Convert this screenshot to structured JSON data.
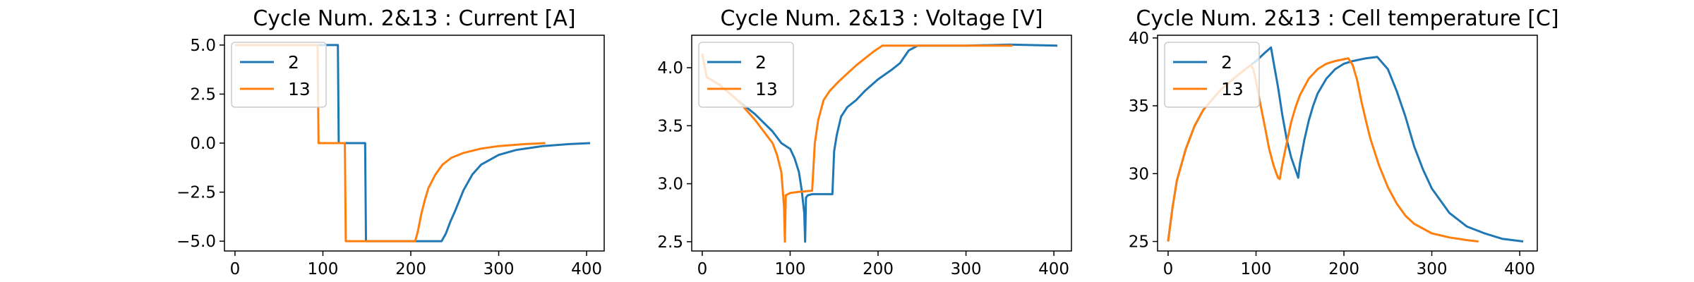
{
  "colors": {
    "series_2": "#1f77b4",
    "series_13": "#ff7f0e"
  },
  "chart_data": [
    {
      "type": "line",
      "title": "Cycle Num. 2&13 : Current [A]",
      "xlim": [
        -12,
        420
      ],
      "ylim": [
        -5.5,
        5.5
      ],
      "xticks": [
        0,
        100,
        200,
        300,
        400
      ],
      "xtick_labels": [
        "0",
        "100",
        "200",
        "300",
        "400"
      ],
      "yticks": [
        5.0,
        2.5,
        0.0,
        -2.5,
        -5.0
      ],
      "ytick_labels": [
        "5.0",
        "2.5",
        "0.0",
        "−2.5",
        "−5.0"
      ],
      "legend": "upper-left",
      "series": [
        {
          "name": "2",
          "x": [
            0,
            117,
            118,
            148,
            149,
            235,
            240,
            245,
            250,
            260,
            270,
            280,
            300,
            320,
            350,
            380,
            404
          ],
          "y": [
            5,
            5,
            0,
            0,
            -5,
            -5,
            -4.6,
            -4.0,
            -3.5,
            -2.4,
            -1.6,
            -1.1,
            -0.6,
            -0.35,
            -0.15,
            -0.05,
            0
          ]
        },
        {
          "name": "13",
          "x": [
            0,
            94,
            95,
            125,
            126,
            205,
            208,
            212,
            216,
            220,
            228,
            236,
            246,
            260,
            280,
            300,
            330,
            353
          ],
          "y": [
            5,
            5,
            0,
            0,
            -5,
            -5,
            -4.5,
            -3.6,
            -2.9,
            -2.3,
            -1.6,
            -1.1,
            -0.75,
            -0.5,
            -0.28,
            -0.15,
            -0.05,
            0
          ]
        }
      ]
    },
    {
      "type": "line",
      "title": "Cycle Num. 2&13 : Voltage [V]",
      "xlim": [
        -12,
        420
      ],
      "ylim": [
        2.42,
        4.28
      ],
      "xticks": [
        0,
        100,
        200,
        300,
        400
      ],
      "xtick_labels": [
        "0",
        "100",
        "200",
        "300",
        "400"
      ],
      "yticks": [
        4.0,
        3.5,
        3.0,
        2.5
      ],
      "ytick_labels": [
        "4.0",
        "3.5",
        "3.0",
        "2.5"
      ],
      "legend": "upper-left",
      "series": [
        {
          "name": "2",
          "x": [
            0,
            5,
            20,
            40,
            60,
            80,
            90,
            100,
            105,
            110,
            113,
            116,
            117,
            118,
            120,
            125,
            148,
            150,
            153,
            158,
            165,
            175,
            185,
            200,
            215,
            225,
            235,
            245,
            300,
            350,
            404
          ],
          "y": [
            4.12,
            3.92,
            3.85,
            3.72,
            3.6,
            3.45,
            3.35,
            3.3,
            3.22,
            3.1,
            2.95,
            2.75,
            2.5,
            2.88,
            2.9,
            2.91,
            2.91,
            3.28,
            3.42,
            3.58,
            3.66,
            3.72,
            3.8,
            3.9,
            3.98,
            4.04,
            4.15,
            4.19,
            4.19,
            4.2,
            4.19
          ]
        },
        {
          "name": "13",
          "x": [
            0,
            5,
            20,
            40,
            60,
            70,
            80,
            85,
            90,
            93,
            94,
            95,
            100,
            110,
            125,
            128,
            132,
            138,
            145,
            155,
            165,
            175,
            185,
            195,
            205,
            215,
            300,
            353
          ],
          "y": [
            4.12,
            3.92,
            3.85,
            3.72,
            3.55,
            3.45,
            3.35,
            3.25,
            3.1,
            2.8,
            2.5,
            2.9,
            2.92,
            2.93,
            2.94,
            3.35,
            3.55,
            3.72,
            3.8,
            3.88,
            3.95,
            4.02,
            4.08,
            4.14,
            4.19,
            4.19,
            4.19,
            4.19
          ]
        }
      ]
    },
    {
      "type": "line",
      "title": "Cycle Num. 2&13 : Cell temperature [C]",
      "xlim": [
        -12,
        420
      ],
      "ylim": [
        24.3,
        40.2
      ],
      "xticks": [
        0,
        100,
        200,
        300,
        400
      ],
      "xtick_labels": [
        "0",
        "100",
        "200",
        "300",
        "400"
      ],
      "yticks": [
        40,
        35,
        30,
        25
      ],
      "ytick_labels": [
        "40",
        "35",
        "30",
        "25"
      ],
      "legend": "upper-left",
      "series": [
        {
          "name": "2",
          "x": [
            0,
            5,
            10,
            20,
            30,
            40,
            60,
            80,
            100,
            110,
            117,
            120,
            125,
            130,
            135,
            140,
            148,
            150,
            155,
            160,
            165,
            170,
            180,
            190,
            200,
            210,
            225,
            238,
            250,
            260,
            270,
            280,
            290,
            300,
            320,
            340,
            360,
            380,
            404
          ],
          "y": [
            25,
            27.5,
            29.5,
            31.8,
            33.5,
            34.7,
            36.2,
            37.3,
            38.3,
            38.9,
            39.3,
            38.2,
            36.4,
            34.3,
            32.5,
            31.2,
            29.7,
            30.8,
            32.5,
            33.9,
            35.0,
            35.9,
            37.0,
            37.7,
            38.1,
            38.3,
            38.5,
            38.6,
            37.7,
            36.1,
            34.2,
            32.0,
            30.3,
            28.9,
            27.1,
            26.1,
            25.6,
            25.2,
            25.0
          ]
        },
        {
          "name": "13",
          "x": [
            0,
            5,
            10,
            20,
            30,
            40,
            60,
            80,
            94,
            97,
            100,
            105,
            110,
            115,
            120,
            125,
            127,
            130,
            135,
            140,
            145,
            150,
            160,
            170,
            180,
            190,
            205,
            210,
            215,
            220,
            225,
            230,
            240,
            250,
            260,
            270,
            280,
            300,
            320,
            340,
            353
          ],
          "y": [
            25,
            27.5,
            29.5,
            31.8,
            33.5,
            34.7,
            36.2,
            37.3,
            38.0,
            37.7,
            36.8,
            35.1,
            33.5,
            31.8,
            30.6,
            29.7,
            29.6,
            30.7,
            32.3,
            33.8,
            34.9,
            35.8,
            37.0,
            37.7,
            38.1,
            38.3,
            38.5,
            38.0,
            36.9,
            35.3,
            33.9,
            32.6,
            30.6,
            29.0,
            27.8,
            26.9,
            26.3,
            25.6,
            25.3,
            25.1,
            25.0
          ]
        }
      ]
    }
  ]
}
